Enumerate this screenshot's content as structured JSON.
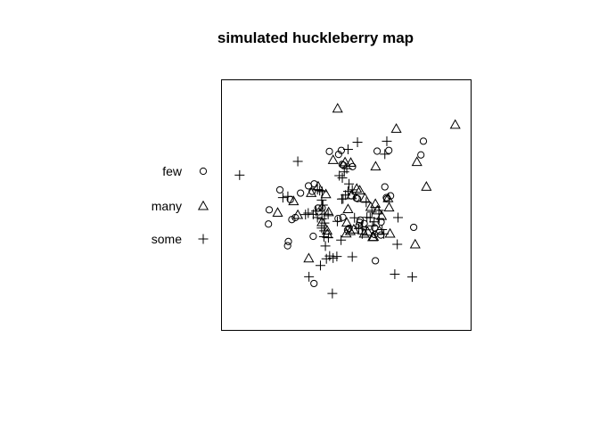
{
  "chart_data": {
    "type": "scatter",
    "title": "simulated huckleberry map",
    "xlabel": "",
    "ylabel": "",
    "xlim": [
      0,
      100
    ],
    "ylim": [
      0,
      100
    ],
    "axes_shown": false,
    "box": true,
    "grid": false,
    "legend": {
      "placement": "left",
      "entries": [
        {
          "label": "few",
          "symbol": "circle"
        },
        {
          "label": "many",
          "symbol": "triangle"
        },
        {
          "label": "some",
          "symbol": "plus"
        }
      ]
    },
    "series": [
      {
        "name": "few",
        "symbol": "circle",
        "x": [
          43.2,
          48.0,
          46.9,
          48.3,
          48.8,
          52.5,
          62.4,
          67.1,
          80.0,
          81.0,
          23.3,
          27.5,
          31.6,
          34.8,
          37.1,
          36.3,
          38.6,
          52.0,
          54.0,
          54.5,
          65.5,
          67.8,
          66.3,
          66.1,
          28.1,
          18.7,
          19.0,
          29.5,
          39.0,
          40.3,
          48.6,
          46.7,
          55.4,
          55.1,
          61.4,
          64.0,
          55.6,
          50.5,
          51.1,
          57.2,
          77.1,
          26.7,
          26.4,
          36.7,
          61.4,
          37.0,
          63.9,
          61.7
        ],
        "y": [
          71.5,
          71.9,
          70.3,
          66.3,
          66.0,
          65.4,
          71.6,
          71.9,
          70.1,
          75.6,
          56.1,
          52.2,
          54.8,
          57.7,
          58.5,
          55.5,
          48.8,
          53.7,
          52.8,
          52.6,
          57.3,
          53.7,
          52.5,
          53.0,
          44.2,
          42.4,
          48.1,
          45.0,
          47.3,
          48.8,
          45.1,
          44.6,
          43.1,
          41.8,
          40.9,
          43.2,
          44.0,
          40.0,
          40.7,
          42.6,
          41.1,
          35.4,
          33.7,
          37.5,
          38.2,
          18.6,
          38.0,
          27.7
        ]
      },
      {
        "name": "many",
        "symbol": "triangle",
        "x": [
          46.5,
          70.1,
          93.8,
          44.7,
          61.8,
          78.4,
          82.2,
          49.5,
          51.8,
          38.7,
          35.9,
          41.8,
          28.8,
          22.4,
          30.5,
          42.9,
          50.7,
          52.1,
          55.4,
          54.2,
          57.5,
          59.8,
          61.7,
          66.8,
          62.5,
          67.2,
          64.2,
          50.2,
          40.2,
          42.3,
          42.4,
          50.0,
          57.2,
          51.6,
          53.0,
          58.6,
          60.6,
          61.0,
          63.3,
          67.6,
          77.7,
          34.9
        ],
        "y": [
          88.7,
          80.6,
          82.2,
          68.1,
          65.5,
          67.3,
          57.4,
          67.2,
          67.0,
          57.5,
          54.9,
          54.4,
          51.6,
          47.0,
          46.1,
          47.2,
          48.4,
          54.0,
          55.9,
          56.6,
          52.8,
          49.3,
          50.5,
          52.8,
          47.9,
          49.1,
          45.7,
          43.0,
          43.2,
          39.8,
          38.5,
          38.7,
          38.6,
          39.6,
          40.3,
          39.4,
          37.2,
          37.3,
          39.7,
          38.6,
          34.3,
          28.7
        ]
      },
      {
        "name": "some",
        "symbol": "plus",
        "x": [
          7.1,
          30.5,
          50.7,
          54.5,
          49.2,
          48.4,
          50.2,
          47.2,
          51.1,
          65.5,
          66.3,
          40.3,
          39.3,
          26.5,
          24.5,
          38.4,
          36.7,
          34.7,
          33.6,
          38.4,
          40.6,
          48.2,
          52.4,
          48.7,
          50.7,
          49.7,
          53.3,
          55.0,
          58.3,
          60.3,
          64.4,
          70.8,
          63.1,
          58.0,
          61.2,
          42.7,
          40.2,
          41.2,
          40.1,
          47.9,
          46.2,
          43.3,
          44.7,
          39.6,
          35.0,
          42.0,
          56.4,
          58.0,
          41.6,
          59.6,
          70.5,
          41.0,
          60.6,
          56.5,
          76.5,
          44.4,
          52.4,
          65.1,
          37.8,
          40.1,
          46.4,
          63.2,
          69.5,
          40.3,
          41.2,
          42.8,
          41.1
        ],
        "y": [
          62.0,
          67.5,
          72.3,
          75.2,
          63.3,
          60.9,
          64.6,
          61.8,
          58.5,
          70.4,
          75.6,
          55.4,
          55.8,
          53.5,
          53.0,
          45.0,
          46.3,
          46.8,
          46.2,
          56.2,
          50.0,
          52.4,
          56.1,
          52.5,
          55.5,
          54.0,
          44.9,
          40.6,
          45.1,
          47.2,
          40.2,
          45.0,
          47.9,
          51.1,
          43.3,
          46.3,
          44.5,
          42.8,
          40.8,
          36.0,
          29.4,
          29.6,
          28.8,
          25.8,
          21.3,
          28.5,
          38.5,
          40.1,
          33.6,
          44.9,
          34.3,
          37.3,
          41.7,
          41.2,
          21.2,
          14.6,
          29.3,
          38.5,
          47.6,
          52.0,
          43.5,
          44.6,
          22.3,
          50.0,
          46.4,
          36.9,
          39.7
        ]
      }
    ]
  }
}
